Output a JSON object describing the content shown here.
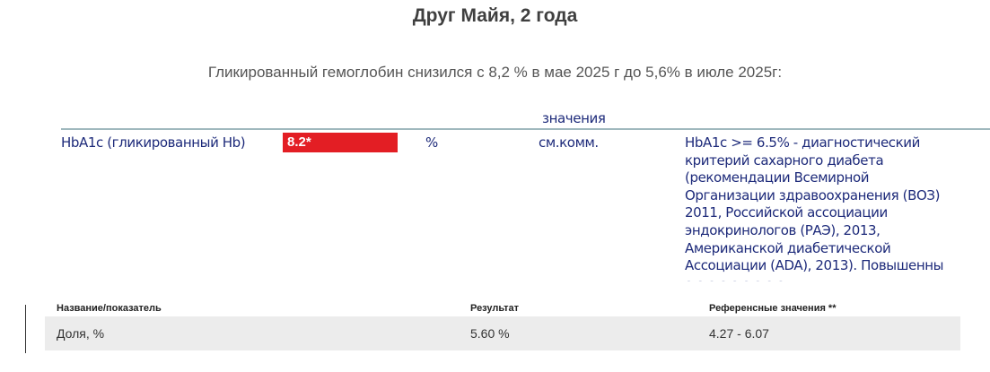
{
  "title": "Друг Майя, 2 года",
  "subtitle": "Гликированный гемоглобин снизился с 8,2 % в мае 2025 г до 5,6% в июле 2025г:",
  "lab1": {
    "header_values": "значения",
    "test_name": "HbA1c (гликированный Hb)",
    "result": "8.2*",
    "result_color": "#e31e24",
    "unit": "%",
    "reference": "см.комм.",
    "comment_lines": [
      "HbA1c >= 6.5% - диагностический",
      "критерий сахарного диабета",
      "(рекомендации Всемирной",
      "Организации здравоохранения (ВОЗ)",
      "2011, Российской ассоциации",
      "эндокринологов (РАЭ), 2013,",
      "Американской диабетической",
      "Ассоциации (ADA), 2013). Повышенны"
    ]
  },
  "lab2": {
    "headers": [
      "Название/показатель",
      "Результат",
      "Референсные значения **"
    ],
    "rows": [
      [
        "Доля, %",
        "5.60 %",
        "4.27 - 6.07"
      ]
    ]
  }
}
